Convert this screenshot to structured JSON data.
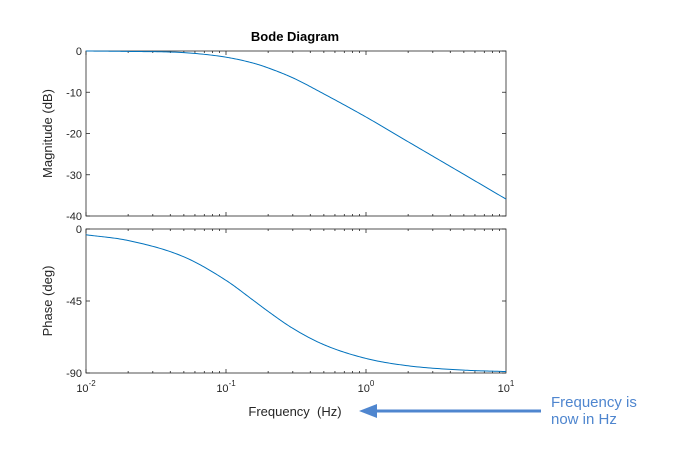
{
  "chart_data": {
    "type": "line",
    "title": "Bode Diagram",
    "xlabel": "Frequency  (Hz)",
    "xscale": "log",
    "xlim": [
      0.01,
      10
    ],
    "x_ticks": [
      {
        "base": "10",
        "exp": "-2"
      },
      {
        "base": "10",
        "exp": "-1"
      },
      {
        "base": "10",
        "exp": "0"
      },
      {
        "base": "10",
        "exp": "1"
      }
    ],
    "line_color": "#0072bd",
    "grid": false,
    "panels": [
      {
        "ylabel": "Magnitude (dB)",
        "ylim": [
          -40,
          0
        ],
        "yticks": [
          0,
          -10,
          -20,
          -30,
          -40
        ],
        "series": [
          {
            "x": [
              0.01,
              0.02,
              0.05,
              0.1,
              0.159,
              0.2,
              0.3,
              0.5,
              1,
              2,
              5,
              10
            ],
            "y": [
              0.0,
              -0.1,
              -0.4,
              -1.5,
              -3.0,
              -4.1,
              -6.5,
              -10.4,
              -16.0,
              -22.0,
              -29.9,
              -35.9
            ]
          }
        ]
      },
      {
        "ylabel": "Phase (deg)",
        "ylim": [
          -90,
          0
        ],
        "yticks": [
          0,
          -45,
          -90
        ],
        "series": [
          {
            "x": [
              0.01,
              0.02,
              0.05,
              0.1,
              0.159,
              0.2,
              0.3,
              0.5,
              1,
              2,
              5,
              10
            ],
            "y": [
              -3.6,
              -7.2,
              -17.4,
              -32.1,
              -45.0,
              -51.5,
              -62.1,
              -72.3,
              -80.9,
              -85.5,
              -88.2,
              -89.1
            ]
          }
        ]
      }
    ]
  },
  "annotation": {
    "line1": "Frequency is",
    "line2": "now in Hz",
    "color": "#4f86cf"
  }
}
